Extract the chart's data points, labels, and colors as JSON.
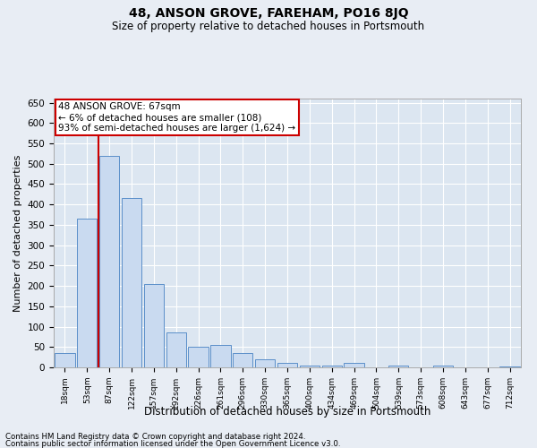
{
  "title": "48, ANSON GROVE, FAREHAM, PO16 8JQ",
  "subtitle": "Size of property relative to detached houses in Portsmouth",
  "xlabel": "Distribution of detached houses by size in Portsmouth",
  "ylabel": "Number of detached properties",
  "categories": [
    "18sqm",
    "53sqm",
    "87sqm",
    "122sqm",
    "157sqm",
    "192sqm",
    "226sqm",
    "261sqm",
    "296sqm",
    "330sqm",
    "365sqm",
    "400sqm",
    "434sqm",
    "469sqm",
    "504sqm",
    "539sqm",
    "573sqm",
    "608sqm",
    "643sqm",
    "677sqm",
    "712sqm"
  ],
  "values": [
    35,
    365,
    520,
    415,
    205,
    85,
    50,
    55,
    35,
    20,
    10,
    5,
    5,
    10,
    0,
    5,
    0,
    5,
    0,
    0,
    3
  ],
  "bar_color": "#c9daf0",
  "bar_edge_color": "#5b8fc9",
  "vline_x": 1.5,
  "vline_color": "#cc0000",
  "ylim": [
    0,
    660
  ],
  "yticks": [
    0,
    50,
    100,
    150,
    200,
    250,
    300,
    350,
    400,
    450,
    500,
    550,
    600,
    650
  ],
  "annotation_text": "48 ANSON GROVE: 67sqm\n← 6% of detached houses are smaller (108)\n93% of semi-detached houses are larger (1,624) →",
  "annotation_box_facecolor": "#ffffff",
  "annotation_box_edgecolor": "#cc0000",
  "footer1": "Contains HM Land Registry data © Crown copyright and database right 2024.",
  "footer2": "Contains public sector information licensed under the Open Government Licence v3.0.",
  "bg_color": "#e8edf4",
  "plot_bg_color": "#dce6f1"
}
